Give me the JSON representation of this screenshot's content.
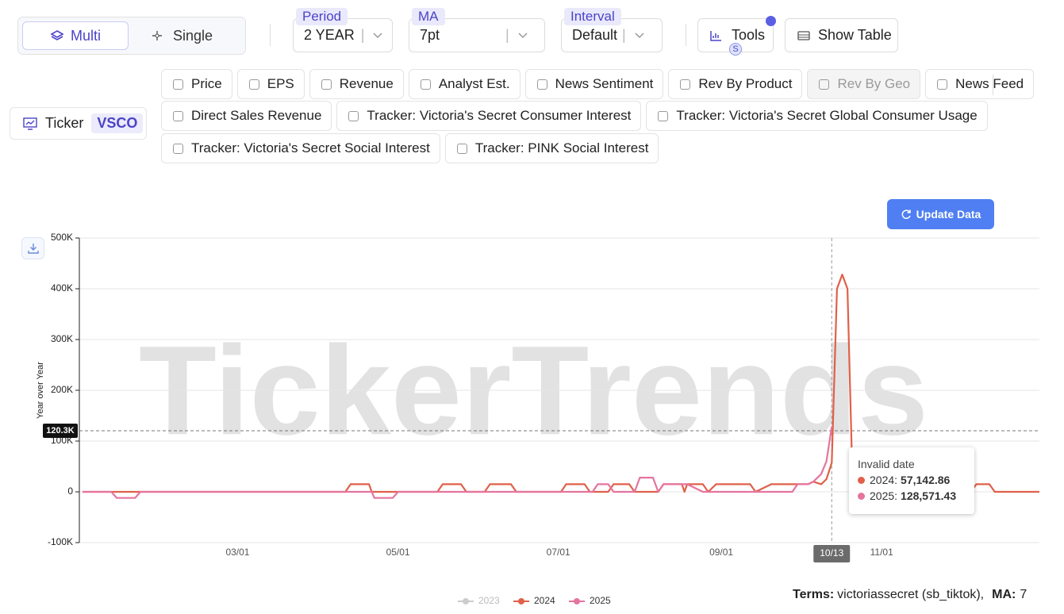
{
  "toolbar": {
    "modes": [
      "Multi",
      "Single"
    ],
    "active_mode": 0,
    "period": {
      "label": "Period",
      "value": "2 YEAR"
    },
    "ma": {
      "label": "MA",
      "value": "7pt"
    },
    "interval": {
      "label": "Interval",
      "value": "Default"
    },
    "tools": "Tools",
    "tools_badge": "S",
    "show_table": "Show Table"
  },
  "ticker": {
    "label": "Ticker",
    "value": "VSCO"
  },
  "filters": [
    [
      {
        "label": "Price"
      },
      {
        "label": "EPS"
      },
      {
        "label": "Revenue"
      },
      {
        "label": "Analyst Est."
      },
      {
        "label": "News Sentiment"
      },
      {
        "label": "Rev By Product"
      },
      {
        "label": "Rev By Geo",
        "disabled": true
      },
      {
        "label": "News Feed"
      }
    ],
    [
      {
        "label": "Direct Sales Revenue"
      },
      {
        "label": "Tracker: Victoria's Secret Consumer Interest"
      },
      {
        "label": "Tracker: Victoria's Secret Global Consumer Usage"
      }
    ],
    [
      {
        "label": "Tracker: Victoria's Secret Social Interest"
      },
      {
        "label": "Tracker: PINK Social Interest"
      }
    ]
  ],
  "update_button": "Update Data",
  "chart_data": {
    "type": "line",
    "y_label": "Year over Year",
    "watermark": "TickerTrends",
    "ylim": [
      -100000,
      500000
    ],
    "yticks": [
      {
        "value": -100000,
        "label": "-100K"
      },
      0,
      {
        "value": 100000,
        "label": "100K"
      },
      {
        "value": 200000,
        "label": "200K"
      },
      {
        "value": 300000,
        "label": "300K"
      },
      {
        "value": 400000,
        "label": "400K"
      },
      {
        "value": 500000,
        "label": "500K"
      }
    ],
    "grid": true,
    "xlim": [
      "01/01",
      "12/31"
    ],
    "xticks": [
      "03/01",
      "05/01",
      "07/01",
      "09/01",
      "11/01"
    ],
    "categories": [
      "01/01",
      "01/12",
      "01/14",
      "01/21",
      "01/23",
      "04/11",
      "04/13",
      "04/20",
      "04/21",
      "04/22",
      "04/29",
      "05/01",
      "05/16",
      "05/18",
      "05/25",
      "05/27",
      "06/03",
      "06/05",
      "06/13",
      "06/15",
      "07/02",
      "07/04",
      "07/11",
      "07/13",
      "07/14",
      "07/16",
      "07/20",
      "07/22",
      "07/28",
      "07/30",
      "08/01",
      "08/06",
      "08/08",
      "08/10",
      "08/17",
      "08/18",
      "08/19",
      "08/25",
      "08/27",
      "08/30",
      "09/12",
      "09/14",
      "09/20",
      "09/28",
      "09/30",
      "10/04",
      "10/06",
      "10/09",
      "10/11",
      "10/13",
      "10/15",
      "10/17",
      "10/19",
      "10/21",
      "12/05",
      "12/07",
      "12/12",
      "12/14",
      "12/31"
    ],
    "series": [
      {
        "name": "2023",
        "color": "#c8c8c8",
        "hidden": true,
        "values": [
          null,
          null,
          null,
          null,
          null,
          null,
          null,
          null,
          null,
          null,
          null,
          null,
          null,
          null,
          null,
          null,
          null,
          null,
          null,
          null,
          null,
          null,
          null,
          null,
          null,
          null,
          null,
          null,
          null,
          null,
          null,
          null,
          null,
          null,
          null,
          null,
          null,
          null,
          null,
          null,
          null,
          null,
          null,
          null,
          null,
          null,
          null,
          null,
          null,
          null,
          null,
          null,
          null,
          null,
          null,
          null,
          null,
          null,
          null
        ]
      },
      {
        "name": "2024",
        "color": "#e0604a",
        "values": [
          0,
          0,
          0,
          0,
          0,
          0,
          15000,
          15000,
          0,
          0,
          0,
          0,
          0,
          15000,
          15000,
          0,
          0,
          15000,
          15000,
          0,
          0,
          15000,
          15000,
          0,
          0,
          0,
          0,
          15000,
          15000,
          0,
          0,
          0,
          0,
          15000,
          15000,
          0,
          15000,
          15000,
          0,
          15000,
          15000,
          0,
          15000,
          15000,
          15000,
          15000,
          20000,
          15000,
          25000,
          57142.86,
          400000,
          428000,
          400000,
          0,
          0,
          15000,
          15000,
          0,
          0
        ]
      },
      {
        "name": "2025",
        "color": "#e5749f",
        "values": [
          0,
          0,
          -12000,
          -12000,
          0,
          0,
          0,
          0,
          0,
          -12000,
          -12000,
          0,
          0,
          0,
          0,
          0,
          0,
          0,
          0,
          0,
          0,
          0,
          0,
          0,
          0,
          15000,
          15000,
          0,
          0,
          0,
          28000,
          28000,
          0,
          15000,
          15000,
          15000,
          15000,
          0,
          0,
          0,
          0,
          0,
          0,
          0,
          15000,
          15000,
          20000,
          35000,
          60000,
          128571.43,
          null,
          null,
          null,
          null,
          null,
          null,
          null,
          null,
          null
        ]
      }
    ],
    "legend": "bottom",
    "crosshair": {
      "x": "10/13",
      "y": 120300,
      "y_label": "120.3K"
    },
    "tooltip": {
      "title": "Invalid date",
      "rows": [
        {
          "name": "2024",
          "value": "57,142.86"
        },
        {
          "name": "2025",
          "value": "128,571.43"
        }
      ]
    }
  },
  "footer": {
    "terms_label": "Terms",
    "terms": "victoriassecret (sb_tiktok),",
    "ma_label": "MA",
    "ma": "7"
  }
}
